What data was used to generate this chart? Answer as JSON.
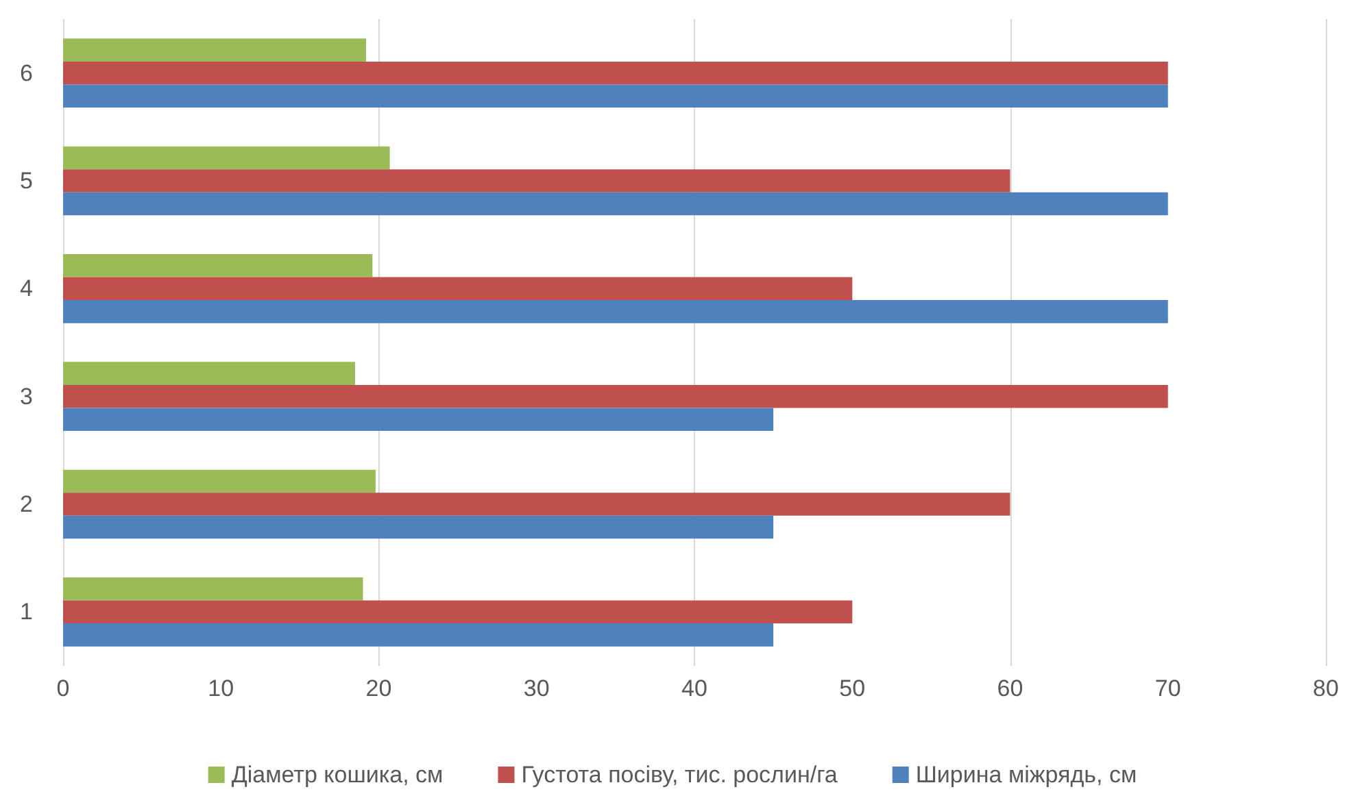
{
  "chart_data": {
    "type": "bar",
    "orientation": "horizontal",
    "categories": [
      "6",
      "5",
      "4",
      "3",
      "2",
      "1"
    ],
    "series": [
      {
        "name": "Діаметр кошика, см",
        "color": "#9bbb59",
        "values": [
          19.2,
          20.7,
          19.6,
          18.5,
          19.8,
          19.0
        ]
      },
      {
        "name": "Густота посіву, тис. рослин/га",
        "color": "#c0504d",
        "values": [
          70,
          60,
          50,
          70,
          60,
          50
        ]
      },
      {
        "name": "Ширина міжрядь, см",
        "color": "#4f81bd",
        "values": [
          70,
          70,
          70,
          45,
          45,
          45
        ]
      }
    ],
    "xlim": [
      0,
      80
    ],
    "xticks": [
      0,
      10,
      20,
      30,
      40,
      50,
      60,
      70,
      80
    ],
    "grid": "x",
    "legend": "bottom"
  }
}
